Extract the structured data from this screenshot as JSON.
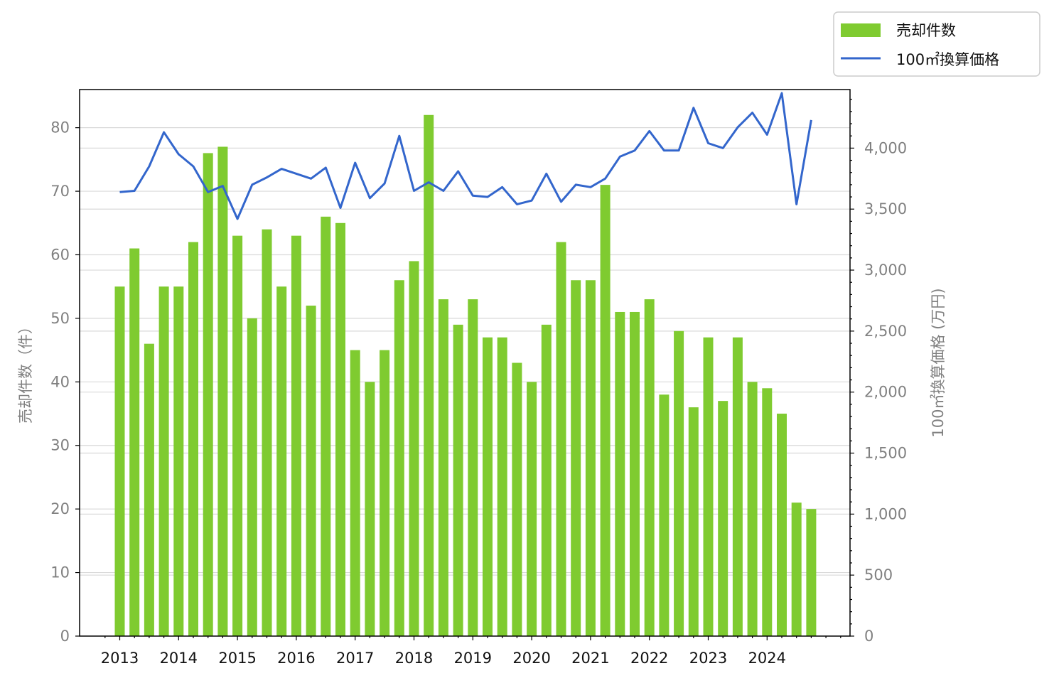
{
  "chart_data": {
    "type": "bar",
    "title": "",
    "legend": {
      "placement": "upper-right, outside plot",
      "entries": [
        {
          "label": "売却件数",
          "kind": "bar",
          "color": "#7fcb30"
        },
        {
          "label": "100㎡換算価格",
          "kind": "line",
          "color": "#3366cc"
        }
      ]
    },
    "x_ticks": [
      "2013",
      "2014",
      "2015",
      "2016",
      "2017",
      "2018",
      "2019",
      "2020",
      "2021",
      "2022",
      "2023",
      "2024"
    ],
    "y_left": {
      "label": "売却件数（件）",
      "lim": [
        0,
        86
      ],
      "ticks": [
        0,
        10,
        20,
        30,
        40,
        50,
        60,
        70,
        80
      ],
      "tick_labels": [
        "0",
        "10",
        "20",
        "30",
        "40",
        "50",
        "60",
        "70",
        "80"
      ]
    },
    "y_right": {
      "label": "100㎡換算価格 (万円)",
      "lim": [
        0,
        4480
      ],
      "ticks": [
        0,
        500,
        1000,
        1500,
        2000,
        2500,
        3000,
        3500,
        4000
      ],
      "tick_labels": [
        "0",
        "500",
        "1,000",
        "1,500",
        "2,000",
        "2,500",
        "3,000",
        "3,500",
        "4,000"
      ]
    },
    "grid": "horizontal",
    "periods_per_year": 4,
    "start_year": 2013,
    "series": [
      {
        "name": "売却件数",
        "type": "bar",
        "axis": "left",
        "color": "#7fcb30",
        "values": [
          55,
          61,
          46,
          55,
          55,
          62,
          76,
          77,
          63,
          50,
          64,
          55,
          63,
          52,
          66,
          65,
          45,
          40,
          45,
          56,
          59,
          82,
          53,
          49,
          53,
          47,
          47,
          43,
          40,
          49,
          62,
          56,
          56,
          71,
          51,
          51,
          53,
          38,
          48,
          36,
          47,
          37,
          47,
          40,
          39,
          35,
          21,
          20
        ]
      },
      {
        "name": "100㎡換算価格",
        "type": "line",
        "axis": "right",
        "color": "#3366cc",
        "values": [
          3640,
          3650,
          3850,
          4130,
          3950,
          3850,
          3640,
          3690,
          3420,
          3700,
          3760,
          3830,
          3790,
          3750,
          3840,
          3510,
          3880,
          3590,
          3710,
          4100,
          3650,
          3720,
          3650,
          3810,
          3610,
          3600,
          3680,
          3540,
          3570,
          3790,
          3560,
          3700,
          3680,
          3750,
          3930,
          3980,
          4140,
          3980,
          3980,
          4330,
          4040,
          4000,
          4170,
          4290,
          4110,
          4450,
          3540,
          4230
        ]
      }
    ]
  }
}
